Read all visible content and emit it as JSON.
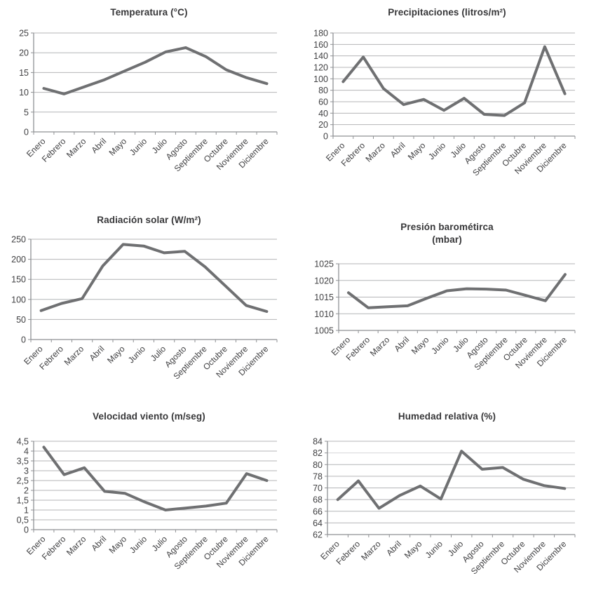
{
  "page": {
    "background": "#ffffff"
  },
  "colors": {
    "line": "#6f7072",
    "grid": "#b4b5b7",
    "grid_light": "#d6d7d9",
    "axis": "#8f9194",
    "text": "#414143",
    "title": "#373739"
  },
  "months": [
    "Enero",
    "Febrero",
    "Marzo",
    "Abril",
    "Mayo",
    "Junio",
    "Julio",
    "Agosto",
    "Septiembre",
    "Octubre",
    "Noviembre",
    "Diciembre"
  ],
  "chart_data": [
    {
      "id": "temperatura",
      "type": "line",
      "title": "Temperatura (°C)",
      "categories": [
        "Enero",
        "Febrero",
        "Marzo",
        "Abril",
        "Mayo",
        "Junio",
        "Julio",
        "Agosto",
        "Septiembre",
        "Octubre",
        "Noviembre",
        "Diciembre"
      ],
      "values": [
        11,
        9.6,
        11.4,
        13.2,
        15.4,
        17.6,
        20.2,
        21.3,
        19,
        15.7,
        13.7,
        12.2
      ],
      "ytick_labels": [
        "25",
        "20",
        "15",
        "10",
        "5",
        "0"
      ],
      "ylim": [
        0,
        25
      ],
      "grid": true,
      "legend": false
    },
    {
      "id": "precipitaciones",
      "type": "line",
      "title": "Precipitaciones (litros/m²)",
      "categories": [
        "Enero",
        "Febrero",
        "Marzo",
        "Abril",
        "Mayo",
        "Junio",
        "Julio",
        "Agosto",
        "Septiembre",
        "Octubre",
        "Noviembre",
        "Diciembre"
      ],
      "values": [
        95,
        138,
        83,
        55,
        64,
        45,
        66,
        38,
        36,
        58,
        156,
        74
      ],
      "ytick_labels": [
        "180",
        "160",
        "140",
        "120",
        "100",
        "80",
        "60",
        "40",
        "20",
        "0"
      ],
      "ylim": [
        0,
        180
      ],
      "grid": true,
      "legend": false
    },
    {
      "id": "radiacion-solar",
      "type": "line",
      "title": "Radiación solar (W/m²)",
      "categories": [
        "Enero",
        "Febrero",
        "Marzo",
        "Abril",
        "Mayo",
        "Junio",
        "Julio",
        "Agosto",
        "Septiembre",
        "Octubre",
        "Noviembre",
        "Diciembre"
      ],
      "values": [
        72,
        90,
        102,
        183,
        237,
        233,
        216,
        220,
        181,
        133,
        85,
        70
      ],
      "ytick_labels": [
        "250",
        "200",
        "150",
        "100",
        "50",
        "0"
      ],
      "ylim": [
        0,
        250
      ],
      "grid": true,
      "legend": false
    },
    {
      "id": "presion-barometrica",
      "type": "line",
      "title": "Presión barométirca",
      "title_line2": "(mbar)",
      "categories": [
        "Enero",
        "Febrero",
        "Marzo",
        "Abril",
        "Mayo",
        "Junio",
        "Julio",
        "Agosto",
        "Septiembre",
        "Octubre",
        "Noviembre",
        "Diciembre"
      ],
      "values": [
        1016.3,
        1011.8,
        1012.1,
        1012.4,
        1014.7,
        1016.9,
        1017.5,
        1017.4,
        1017.1,
        1015.5,
        1013.9,
        1021.8
      ],
      "ytick_labels": [
        "1025",
        "1020",
        "1015",
        "1010",
        "1005"
      ],
      "ylim": [
        1005,
        1025
      ],
      "grid": true,
      "legend": false
    },
    {
      "id": "velocidad-viento",
      "type": "line",
      "title": "Velocidad viento (m/seg)",
      "categories": [
        "Enero",
        "Febrero",
        "Marzo",
        "Abril",
        "Mayo",
        "Junio",
        "Julio",
        "Agosto",
        "Septiembre",
        "Octubre",
        "Noviembre",
        "Diciembre"
      ],
      "values": [
        4.2,
        2.8,
        3.15,
        1.95,
        1.85,
        1.4,
        1,
        1.1,
        1.2,
        1.35,
        2.85,
        2.5
      ],
      "ytick_labels": [
        "4,5",
        "4",
        "3,5",
        "3",
        "2,5",
        "2",
        "1,5",
        "1",
        "0,5",
        "0"
      ],
      "ylim": [
        0,
        4.5
      ],
      "grid": true,
      "legend": false
    },
    {
      "id": "humedad-relativa",
      "type": "line",
      "title": "Humedad relativa (%)",
      "categories": [
        "Enero",
        "Febrero",
        "Marzo",
        "Abril",
        "Mayo",
        "Junio",
        "Julio",
        "Agosto",
        "Septiembre",
        "Octubre",
        "Noviembre",
        "Diciembre"
      ],
      "values": [
        68,
        74.8,
        66.5,
        68.7,
        71.3,
        68.1,
        82.3,
        79.2,
        79.5,
        75.9,
        71.6,
        69.9
      ],
      "ytick_labels": [
        "84",
        "82",
        "80",
        "78",
        "70",
        "68",
        "66",
        "64",
        "62"
      ],
      "ylim": [
        62,
        84
      ],
      "light_rows": [
        1
      ],
      "grid": true,
      "legend": false
    }
  ]
}
